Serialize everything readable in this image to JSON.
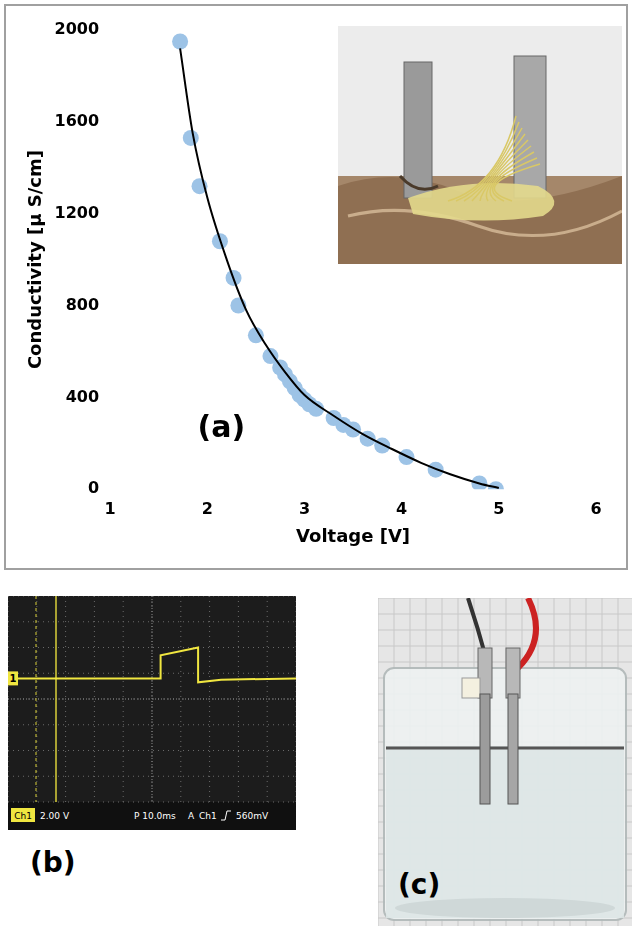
{
  "chart_data": {
    "type": "scatter",
    "x_label": "Voltage [V]",
    "y_label": "Conductivity [μ S/cm]",
    "annotation": "(a)",
    "xlim": [
      1,
      6
    ],
    "xticks": [
      1,
      2,
      3,
      4,
      5,
      6
    ],
    "ylim": [
      0,
      2000
    ],
    "yticks": [
      0,
      400,
      800,
      1200,
      1600,
      2000
    ],
    "grid": false,
    "series": [
      {
        "type": "scatter",
        "color": "#9dc3e6",
        "marker": "circle",
        "x": [
          1.72,
          1.83,
          1.92,
          2.13,
          2.27,
          2.32,
          2.5,
          2.65,
          2.75,
          2.8,
          2.85,
          2.9,
          2.95,
          3.0,
          3.05,
          3.12,
          3.3,
          3.4,
          3.5,
          3.65,
          3.8,
          4.05,
          4.35,
          4.8,
          4.97
        ],
        "values": [
          1950,
          1530,
          1320,
          1080,
          920,
          800,
          670,
          580,
          530,
          500,
          470,
          440,
          410,
          390,
          370,
          350,
          310,
          280,
          260,
          220,
          190,
          140,
          85,
          25,
          0
        ]
      },
      {
        "type": "line",
        "color": "#000000",
        "line_style": "solid",
        "x": [
          1.72,
          1.85,
          2.0,
          2.2,
          2.4,
          2.6,
          2.8,
          3.0,
          3.3,
          3.6,
          3.9,
          4.2,
          4.5,
          4.8,
          5.0
        ],
        "values": [
          1920,
          1550,
          1270,
          1000,
          780,
          630,
          510,
          410,
          320,
          240,
          175,
          115,
          65,
          25,
          5
        ]
      }
    ]
  },
  "oscilloscope": {
    "label": "(b)",
    "channel_marker": "1",
    "status": [
      "Ch1",
      "2.00 V",
      "P 10.0ms",
      "A",
      "Ch1",
      "560mV"
    ],
    "trace": {
      "time_div": [
        0,
        5.3,
        5.3,
        6.6,
        6.6,
        7.4,
        10
      ],
      "level_div": [
        0,
        0,
        0.9,
        1.2,
        -0.15,
        -0.05,
        0
      ]
    }
  },
  "photo_c": {
    "label": "(c)"
  }
}
